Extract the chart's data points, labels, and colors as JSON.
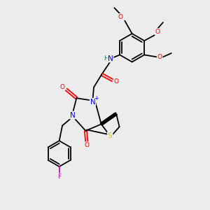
{
  "background_color": "#ececec",
  "line_color": "black",
  "atom_colors": {
    "N": "#0000ff",
    "O": "#ff0000",
    "S": "#cccc00",
    "F": "#cc00cc",
    "H": "#008080",
    "C": "black"
  },
  "figsize": [
    3.0,
    3.0
  ],
  "dpi": 100
}
